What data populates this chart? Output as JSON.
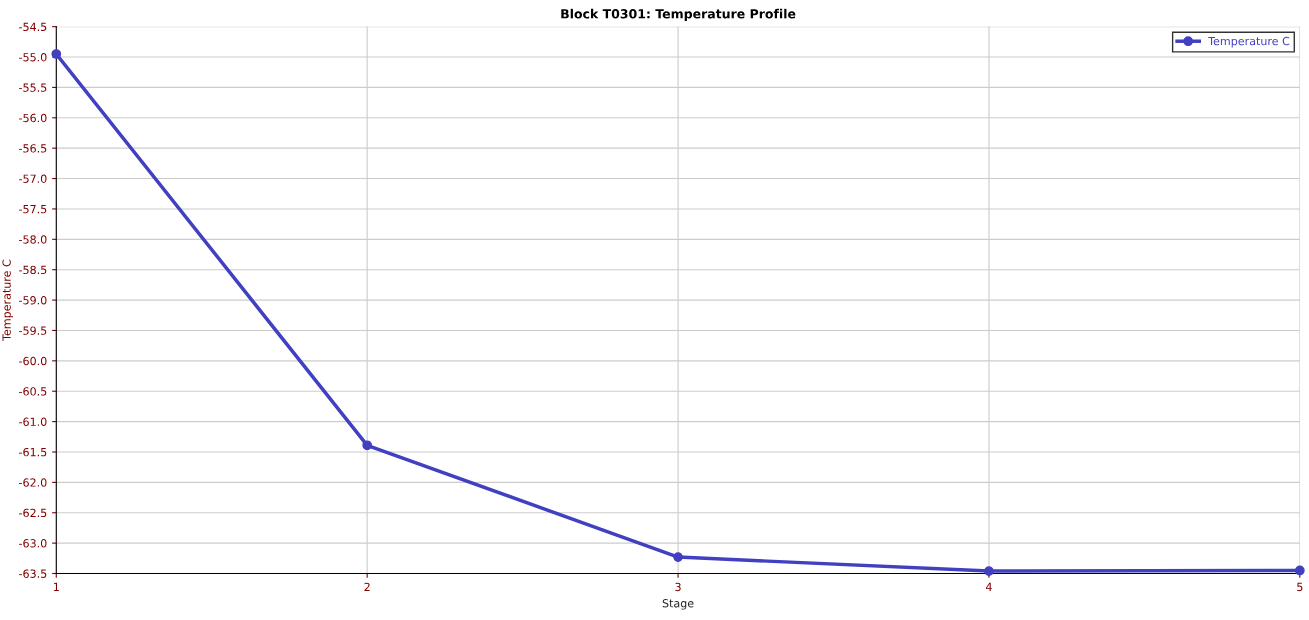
{
  "chart_data": {
    "type": "line",
    "title": "Block T0301: Temperature Profile",
    "xlabel": "Stage",
    "ylabel": "Temperature C",
    "x": [
      1,
      2,
      3,
      4,
      5
    ],
    "series": [
      {
        "name": "Temperature C",
        "color": "#4040c0",
        "values": [
          -54.95,
          -61.39,
          -63.23,
          -63.46,
          -63.45
        ]
      }
    ],
    "xlim": [
      1,
      5
    ],
    "xticks": [
      1,
      2,
      3,
      4,
      5
    ],
    "ylim": [
      -63.5,
      -54.5
    ],
    "yticks": [
      {
        "value": -63.5,
        "label": "-63.5"
      },
      {
        "value": -63.0,
        "label": "-63.0"
      },
      {
        "value": -62.5,
        "label": "-62.5"
      },
      {
        "value": -62.0,
        "label": "-62.0"
      },
      {
        "value": -61.5,
        "label": "-61.5"
      },
      {
        "value": -61.0,
        "label": "-61.0"
      },
      {
        "value": -60.5,
        "label": "-60.5"
      },
      {
        "value": -60.0,
        "label": "-60.0"
      },
      {
        "value": -59.5,
        "label": "-59.5"
      },
      {
        "value": -59.0,
        "label": "-59.0"
      },
      {
        "value": -58.5,
        "label": "-58.5"
      },
      {
        "value": -58.0,
        "label": "-58.0"
      },
      {
        "value": -57.5,
        "label": "-57.5"
      },
      {
        "value": -57.0,
        "label": "-57.0"
      },
      {
        "value": -56.5,
        "label": "-56.5"
      },
      {
        "value": -56.0,
        "label": "-56.0"
      },
      {
        "value": -55.5,
        "label": "-55.5"
      },
      {
        "value": -55.0,
        "label": "-55.0"
      },
      {
        "value": -54.5,
        "label": "-54.5"
      }
    ],
    "grid": true,
    "legend": "top right",
    "marker": "circle",
    "line_style": "solid"
  }
}
